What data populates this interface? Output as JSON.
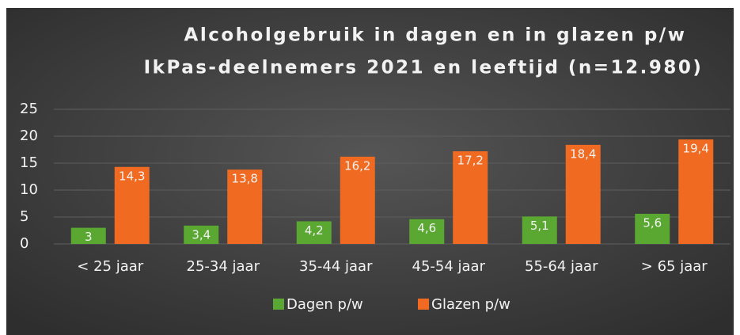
{
  "chart_data": {
    "type": "bar",
    "title": "Alcoholgebruik in dagen en in glazen p/w",
    "subtitle": "IkPas-deelnemers 2021 en leeftijd (n=12.980)",
    "categories": [
      "< 25 jaar",
      "25-34 jaar",
      "35-44 jaar",
      "45-54 jaar",
      "55-64 jaar",
      "> 65 jaar"
    ],
    "series": [
      {
        "name": "Dagen p/w",
        "color": "#5aa832",
        "values": [
          3,
          3.4,
          4.2,
          4.6,
          5.1,
          5.6
        ],
        "value_labels": [
          "3",
          "3,4",
          "4,2",
          "4,6",
          "5,1",
          "5,6"
        ]
      },
      {
        "name": "Glazen p/w",
        "color": "#f06b21",
        "values": [
          14.3,
          13.8,
          16.2,
          17.2,
          18.4,
          19.4
        ],
        "value_labels": [
          "14,3",
          "13,8",
          "16,2",
          "17,2",
          "18,4",
          "19,4"
        ]
      }
    ],
    "ylim": [
      0,
      25
    ],
    "yticks": [
      0,
      5,
      10,
      15,
      20,
      25
    ],
    "grid": true,
    "legend": "bottom"
  }
}
